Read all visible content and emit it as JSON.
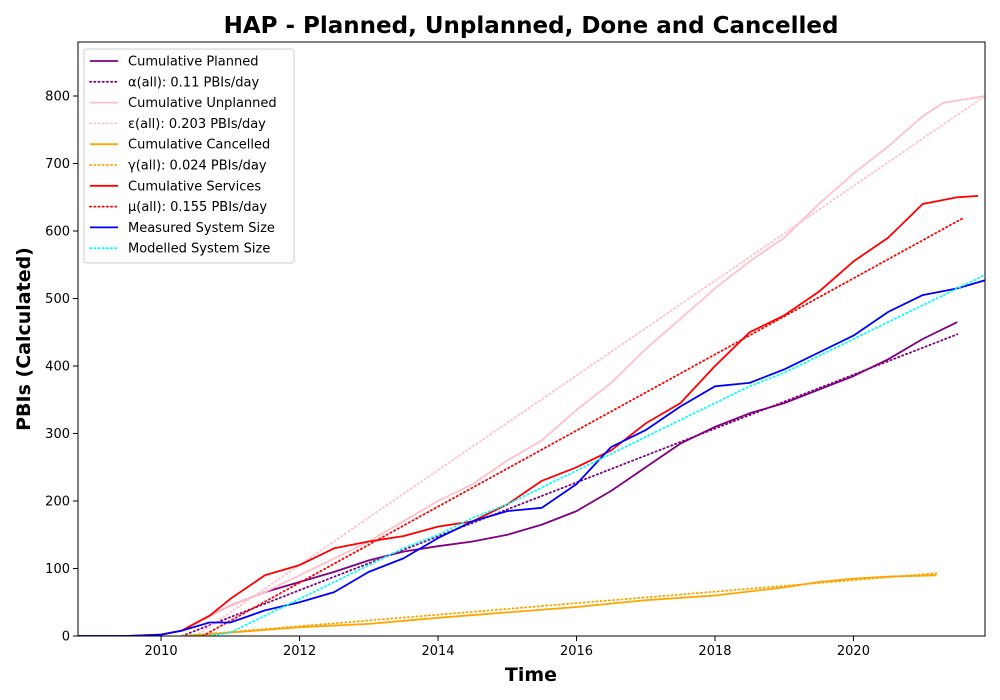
{
  "chart_data": {
    "type": "line",
    "title": "HAP - Planned, Unplanned, Done  and Cancelled",
    "xlabel": "Time",
    "ylabel": "PBIs (Calculated)",
    "xlim": [
      2008.8,
      2021.9
    ],
    "ylim": [
      0,
      880
    ],
    "x_ticks": [
      2010,
      2012,
      2014,
      2016,
      2018,
      2020
    ],
    "y_ticks": [
      0,
      100,
      200,
      300,
      400,
      500,
      600,
      700,
      800
    ],
    "legend_position": "upper-left",
    "grid": false,
    "series": [
      {
        "name": "Cumulative Planned",
        "color": "#800080",
        "style": "solid",
        "x": [
          2008.8,
          2009.5,
          2010.0,
          2010.3,
          2010.6,
          2011.0,
          2011.5,
          2012.0,
          2012.5,
          2013.0,
          2013.5,
          2014.0,
          2014.5,
          2015.0,
          2015.5,
          2016.0,
          2016.5,
          2017.0,
          2017.5,
          2018.0,
          2018.5,
          2019.0,
          2019.5,
          2020.0,
          2020.5,
          2021.0,
          2021.5
        ],
        "values": [
          0,
          0,
          2,
          8,
          25,
          45,
          65,
          80,
          95,
          112,
          125,
          133,
          140,
          150,
          165,
          185,
          215,
          250,
          285,
          310,
          330,
          345,
          365,
          385,
          410,
          440,
          465
        ]
      },
      {
        "name": "α(all): 0.11 PBIs/day",
        "color": "#800080",
        "style": "dotted",
        "x": [
          2010.3,
          2021.5
        ],
        "values": [
          0,
          447
        ]
      },
      {
        "name": "Cumulative Unplanned",
        "color": "#ffc0cb",
        "style": "solid",
        "x": [
          2008.8,
          2009.5,
          2010.0,
          2010.3,
          2010.6,
          2011.0,
          2011.5,
          2012.0,
          2012.5,
          2013.0,
          2013.5,
          2014.0,
          2014.5,
          2015.0,
          2015.5,
          2016.0,
          2016.5,
          2017.0,
          2017.5,
          2018.0,
          2018.5,
          2019.0,
          2019.5,
          2020.0,
          2020.5,
          2021.0,
          2021.3,
          2021.9
        ],
        "values": [
          0,
          0,
          2,
          8,
          25,
          45,
          65,
          90,
          115,
          140,
          170,
          200,
          225,
          260,
          290,
          335,
          375,
          425,
          470,
          515,
          555,
          590,
          640,
          685,
          725,
          770,
          790,
          800
        ]
      },
      {
        "name": "ε(all): 0.203 PBIs/day",
        "color": "#ffc0cb",
        "style": "dotted",
        "x": [
          2010.5,
          2021.9
        ],
        "values": [
          0,
          800
        ]
      },
      {
        "name": "Cumulative Cancelled",
        "color": "#ffa500",
        "style": "solid",
        "x": [
          2010.3,
          2011.0,
          2012.0,
          2013.0,
          2014.0,
          2015.0,
          2016.0,
          2017.0,
          2018.0,
          2019.0,
          2019.5,
          2020.0,
          2020.5,
          2021.2
        ],
        "values": [
          0,
          5,
          13,
          18,
          27,
          35,
          43,
          53,
          60,
          72,
          80,
          85,
          88,
          90
        ]
      },
      {
        "name": "γ(all): 0.024 PBIs/day",
        "color": "#ffa500",
        "style": "dotted",
        "x": [
          2010.3,
          2021.2
        ],
        "values": [
          0,
          93
        ]
      },
      {
        "name": "Cumulative Services",
        "color": "#ff0000",
        "style": "solid",
        "x": [
          2008.8,
          2009.5,
          2010.0,
          2010.3,
          2010.7,
          2011.0,
          2011.5,
          2012.0,
          2012.5,
          2013.0,
          2013.5,
          2014.0,
          2014.5,
          2015.0,
          2015.5,
          2016.0,
          2016.5,
          2017.0,
          2017.5,
          2018.0,
          2018.5,
          2019.0,
          2019.5,
          2020.0,
          2020.5,
          2021.0,
          2021.5,
          2021.8
        ],
        "values": [
          0,
          0,
          2,
          8,
          30,
          55,
          90,
          105,
          130,
          140,
          148,
          162,
          170,
          195,
          230,
          250,
          275,
          315,
          345,
          400,
          450,
          475,
          510,
          555,
          590,
          640,
          650,
          652
        ]
      },
      {
        "name": "μ(all): 0.155 PBIs/day",
        "color": "#ff0000",
        "style": "dotted",
        "x": [
          2010.6,
          2021.6
        ],
        "values": [
          0,
          620
        ]
      },
      {
        "name": "Measured System Size",
        "color": "#0000ff",
        "style": "solid",
        "x": [
          2008.8,
          2009.5,
          2010.0,
          2010.3,
          2010.7,
          2011.0,
          2011.5,
          2012.0,
          2012.5,
          2013.0,
          2013.5,
          2014.0,
          2014.5,
          2015.0,
          2015.5,
          2016.0,
          2016.5,
          2017.0,
          2017.5,
          2018.0,
          2018.5,
          2019.0,
          2019.5,
          2020.0,
          2020.5,
          2021.0,
          2021.5,
          2021.9
        ],
        "values": [
          0,
          0,
          2,
          8,
          20,
          20,
          38,
          50,
          65,
          95,
          115,
          145,
          170,
          185,
          190,
          225,
          280,
          305,
          340,
          370,
          375,
          395,
          420,
          445,
          480,
          505,
          515,
          527
        ]
      },
      {
        "name": "Modelled System Size",
        "color": "#00ffff",
        "style": "dotted",
        "x": [
          2010.4,
          2010.7,
          2011.0,
          2011.5,
          2012.0,
          2012.5,
          2013.0,
          2013.5,
          2014.0,
          2014.5,
          2015.0,
          2015.5,
          2016.0,
          2016.5,
          2017.0,
          2017.5,
          2018.0,
          2018.5,
          2019.0,
          2019.5,
          2020.0,
          2020.5,
          2021.0,
          2021.5,
          2021.9
        ],
        "values": [
          0,
          0,
          5,
          30,
          55,
          80,
          105,
          130,
          150,
          175,
          195,
          220,
          245,
          270,
          295,
          320,
          345,
          370,
          390,
          415,
          440,
          465,
          490,
          515,
          535
        ]
      }
    ]
  }
}
